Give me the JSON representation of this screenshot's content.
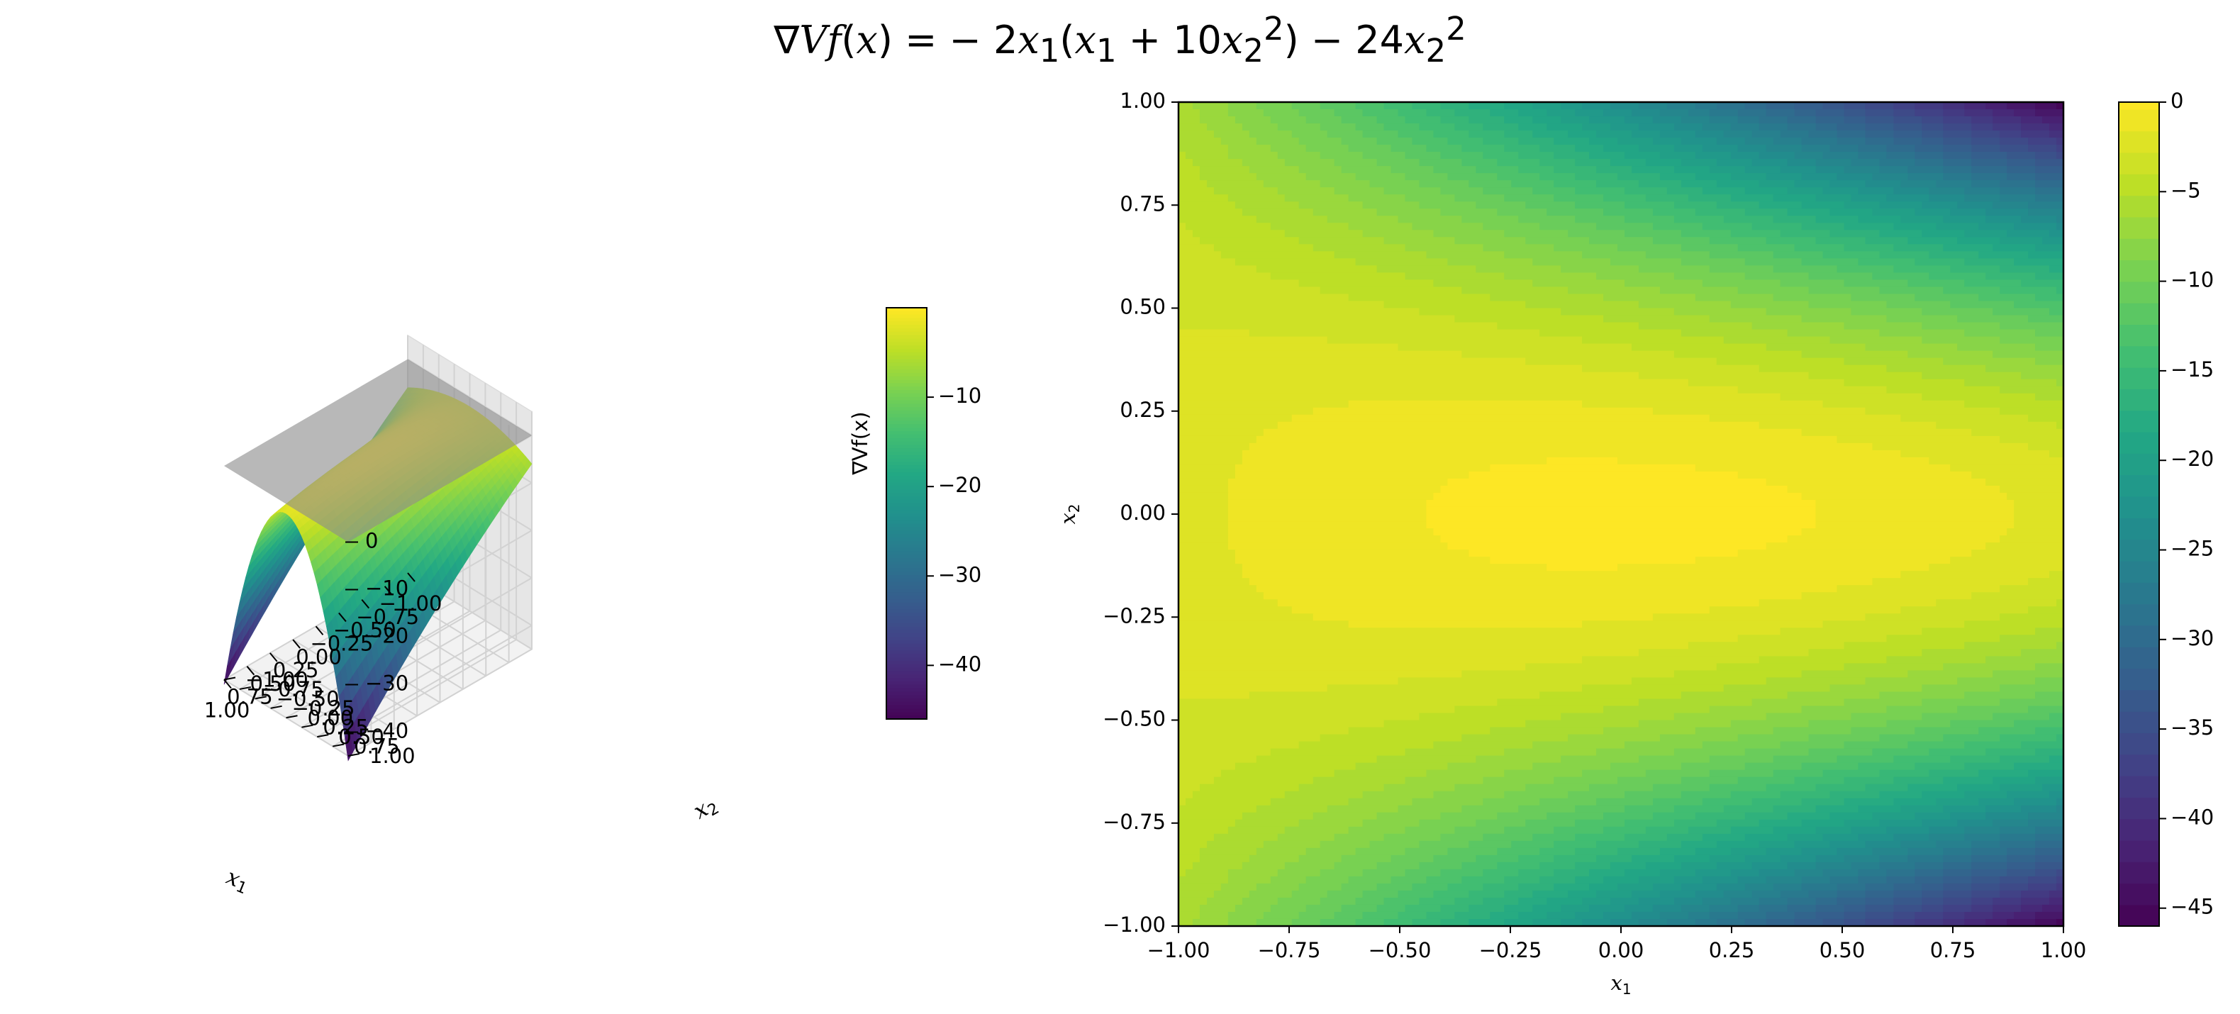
{
  "figure": {
    "title_parts": {
      "nabla": "∇",
      "V": "V",
      "f": "f",
      "paren_open": "(",
      "x": "x",
      "paren_close": ")",
      "eq": " = − 2",
      "x1_var": "x",
      "x1_sub": "1",
      "open2": "(",
      "x1b": "x",
      "x1b_sub": "1",
      "plus": " + 10",
      "x2a": "x",
      "x2a_sub": "2",
      "x2a_sup": "2",
      "close2": ")",
      "minus": " − 24",
      "x2b": "x",
      "x2b_sub": "2",
      "x2b_sup": "2"
    }
  },
  "chart_data": [
    {
      "type": "surface3d",
      "function": "-2*x1*(x1 + 10*x2^2) - 24*x2^2",
      "xlabel": "x",
      "xlabel_sub": "1",
      "ylabel": "x",
      "ylabel_sub": "2",
      "xlim": [
        -1.0,
        1.0
      ],
      "ylim": [
        -1.0,
        1.0
      ],
      "zlim": [
        -46,
        0
      ],
      "x_ticks": [
        "−1.00",
        "−0.75",
        "−0.50",
        "−0.25",
        "0.00",
        "0.25",
        "0.50",
        "0.75",
        "1.00"
      ],
      "y_ticks": [
        "−1.00",
        "−0.75",
        "−0.50",
        "−0.25",
        "0.00",
        "0.25",
        "0.50",
        "0.75",
        "1.00"
      ],
      "z_ticks": [
        "0",
        "−10",
        "−20",
        "−30",
        "−40"
      ],
      "z_tick_values": [
        0,
        -10,
        -20,
        -30,
        -40
      ],
      "plane_z": 0,
      "colormap": "viridis",
      "colorbar": {
        "label": "∇Vf(x)",
        "range": [
          -46,
          0
        ],
        "ticks": [
          "−10",
          "−20",
          "−30",
          "−40"
        ],
        "tick_values": [
          -10,
          -20,
          -30,
          -40
        ]
      }
    },
    {
      "type": "contourf",
      "function": "-2*x1*(x1 + 10*x2^2) - 24*x2^2",
      "xlabel": "x",
      "xlabel_sub": "1",
      "ylabel": "x",
      "ylabel_sub": "2",
      "xlim": [
        -1.0,
        1.0
      ],
      "ylim": [
        -1.0,
        1.0
      ],
      "x_ticks": [
        "−1.00",
        "−0.75",
        "−0.50",
        "−0.25",
        "0.00",
        "0.25",
        "0.50",
        "0.75",
        "1.00"
      ],
      "x_tick_values": [
        -1.0,
        -0.75,
        -0.5,
        -0.25,
        0.0,
        0.25,
        0.5,
        0.75,
        1.0
      ],
      "y_ticks": [
        "−1.00",
        "−0.75",
        "−0.50",
        "−0.25",
        "0.00",
        "0.25",
        "0.50",
        "0.75",
        "1.00"
      ],
      "y_tick_values": [
        -1.0,
        -0.75,
        -0.5,
        -0.25,
        0.0,
        0.25,
        0.5,
        0.75,
        1.0
      ],
      "levels_step": 1.2,
      "colormap": "viridis",
      "colorbar": {
        "range": [
          -46,
          0
        ],
        "ticks": [
          "0",
          "−5",
          "−10",
          "−15",
          "−20",
          "−25",
          "−30",
          "−35",
          "−40",
          "−45"
        ],
        "tick_values": [
          0,
          -5,
          -10,
          -15,
          -20,
          -25,
          -30,
          -35,
          -40,
          -45
        ]
      }
    }
  ]
}
